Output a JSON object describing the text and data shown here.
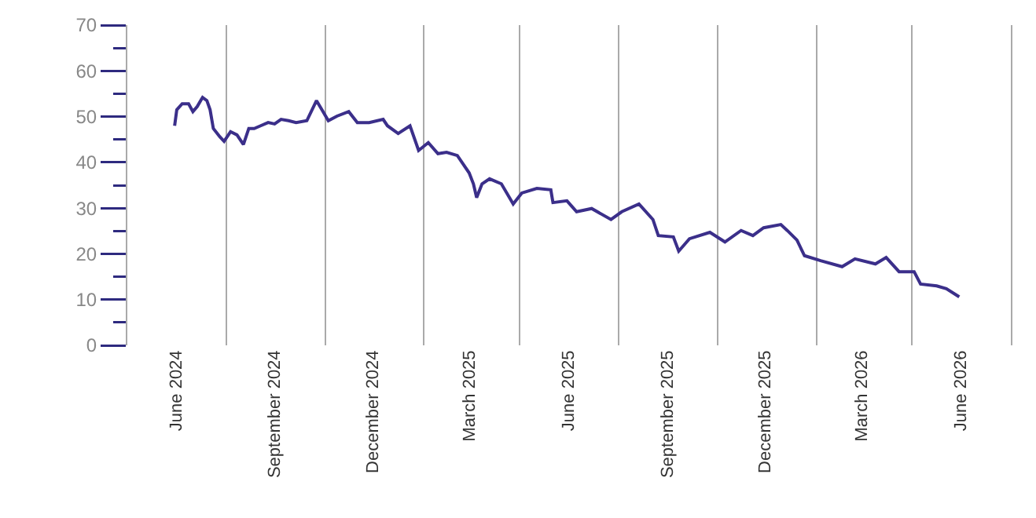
{
  "chart_data": {
    "type": "line",
    "x": [
      "2024-06-14",
      "2024-06-16",
      "2024-06-21",
      "2024-06-27",
      "2024-07-01",
      "2024-07-05",
      "2024-07-10",
      "2024-07-14",
      "2024-07-17",
      "2024-07-20",
      "2024-07-26",
      "2024-07-30",
      "2024-08-05",
      "2024-08-11",
      "2024-08-17",
      "2024-08-22",
      "2024-08-27",
      "2024-09-02",
      "2024-09-09",
      "2024-09-15",
      "2024-09-21",
      "2024-09-28",
      "2024-10-05",
      "2024-10-15",
      "2024-10-24",
      "2024-10-29",
      "2024-11-04",
      "2024-11-12",
      "2024-11-23",
      "2024-12-01",
      "2024-12-12",
      "2024-12-25",
      "2024-12-29",
      "2025-01-08",
      "2025-01-19",
      "2025-01-27",
      "2025-02-05",
      "2025-02-14",
      "2025-02-22",
      "2025-03-04",
      "2025-03-15",
      "2025-03-19",
      "2025-03-22",
      "2025-03-27",
      "2025-04-03",
      "2025-04-14",
      "2025-04-25",
      "2025-05-03",
      "2025-05-17",
      "2025-05-30",
      "2025-06-01",
      "2025-06-14",
      "2025-06-23",
      "2025-07-07",
      "2025-07-25",
      "2025-08-04",
      "2025-08-20",
      "2025-09-02",
      "2025-09-07",
      "2025-09-21",
      "2025-09-26",
      "2025-10-06",
      "2025-10-25",
      "2025-11-08",
      "2025-11-23",
      "2025-12-04",
      "2025-12-14",
      "2025-12-30",
      "2026-01-05",
      "2026-01-14",
      "2026-01-21",
      "2026-02-05",
      "2026-02-25",
      "2026-03-09",
      "2026-03-28",
      "2026-04-07",
      "2026-04-19",
      "2026-05-03",
      "2026-05-09",
      "2026-05-24",
      "2026-06-02",
      "2026-06-14"
    ],
    "series": [
      {
        "color": "#3b2f8a",
        "values": [
          48.0,
          51.5,
          52.8,
          52.8,
          51.1,
          52.2,
          54.2,
          53.5,
          51.5,
          47.4,
          45.6,
          44.6,
          46.7,
          46.0,
          43.9,
          47.4,
          47.4,
          48.0,
          48.7,
          48.4,
          49.4,
          49.1,
          48.7,
          49.1,
          53.5,
          51.5,
          49.1,
          50.1,
          51.1,
          48.7,
          48.7,
          49.4,
          48.0,
          46.3,
          48.0,
          42.6,
          44.3,
          41.9,
          42.2,
          41.5,
          37.7,
          35.3,
          32.3,
          35.3,
          36.4,
          35.3,
          30.9,
          33.3,
          34.3,
          34.0,
          31.2,
          31.6,
          29.2,
          29.9,
          27.5,
          29.2,
          30.9,
          27.5,
          24.0,
          23.7,
          20.6,
          23.3,
          24.7,
          22.6,
          25.1,
          24.0,
          25.7,
          26.4,
          25.1,
          23.0,
          19.6,
          18.5,
          17.2,
          18.9,
          17.8,
          19.2,
          16.1,
          16.1,
          13.4,
          13.0,
          12.4,
          10.6
        ]
      }
    ],
    "xlim": [
      "2024-05-01",
      "2026-08-01"
    ],
    "xticks": [
      {
        "value": "2024-05-01",
        "label": null
      },
      {
        "value": "2024-06-15",
        "label": "June 2024"
      },
      {
        "value": "2024-08-01",
        "label": null
      },
      {
        "value": "2024-09-15",
        "label": "September 2024"
      },
      {
        "value": "2024-11-01",
        "label": null
      },
      {
        "value": "2024-12-15",
        "label": "December 2024"
      },
      {
        "value": "2025-02-01",
        "label": null
      },
      {
        "value": "2025-03-15",
        "label": "March 2025"
      },
      {
        "value": "2025-05-01",
        "label": null
      },
      {
        "value": "2025-06-15",
        "label": "June 2025"
      },
      {
        "value": "2025-08-01",
        "label": null
      },
      {
        "value": "2025-09-15",
        "label": "September 2025"
      },
      {
        "value": "2025-11-01",
        "label": null
      },
      {
        "value": "2025-12-15",
        "label": "December 2025"
      },
      {
        "value": "2026-02-01",
        "label": null
      },
      {
        "value": "2026-03-15",
        "label": "March 2026"
      },
      {
        "value": "2026-05-01",
        "label": null
      },
      {
        "value": "2026-06-15",
        "label": "June 2026"
      },
      {
        "value": "2026-08-01",
        "label": null
      }
    ],
    "ylim": [
      0,
      70
    ],
    "yticks": [
      0,
      {
        "value": 5,
        "label": null
      },
      10,
      {
        "value": 15,
        "label": null
      },
      20,
      {
        "value": 25,
        "label": null
      },
      30,
      {
        "value": 35,
        "label": null
      },
      40,
      {
        "value": 45,
        "label": null
      },
      50,
      {
        "value": 55,
        "label": null
      },
      60,
      {
        "value": 65,
        "label": null
      },
      70
    ],
    "grid": "x",
    "marker": "none",
    "line_style": "solid"
  }
}
